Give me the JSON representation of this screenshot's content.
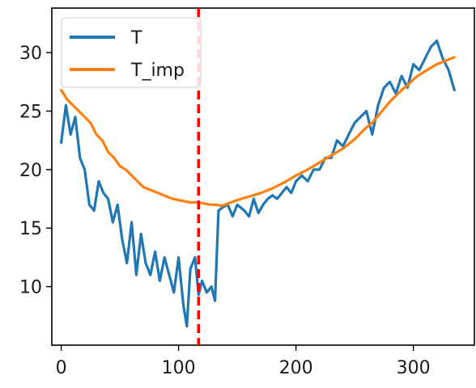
{
  "chart_data": {
    "type": "line",
    "title": "",
    "xlabel": "",
    "ylabel": "",
    "xlim": [
      -8,
      352
    ],
    "ylim": [
      5.0,
      33.8
    ],
    "x_ticks": [
      0,
      100,
      200,
      300
    ],
    "y_ticks": [
      10,
      15,
      20,
      25,
      30
    ],
    "grid": false,
    "legend_position": "top-left",
    "vline": {
      "x": 117,
      "color": "#ff0000",
      "style": "dashed"
    },
    "series": [
      {
        "name": "T",
        "color": "#1f77b4",
        "x": [
          0,
          4,
          8,
          12,
          16,
          20,
          24,
          28,
          32,
          36,
          40,
          44,
          48,
          52,
          56,
          60,
          64,
          68,
          72,
          76,
          80,
          84,
          88,
          92,
          96,
          100,
          104,
          107,
          110,
          114,
          117,
          120,
          124,
          128,
          131,
          134,
          138,
          142,
          146,
          150,
          156,
          160,
          164,
          168,
          172,
          176,
          180,
          184,
          188,
          192,
          196,
          200,
          205,
          210,
          215,
          220,
          225,
          230,
          235,
          240,
          245,
          250,
          255,
          260,
          265,
          270,
          275,
          280,
          285,
          290,
          295,
          300,
          305,
          310,
          315,
          320,
          325,
          330,
          335
        ],
        "values": [
          22.3,
          25.5,
          23.0,
          24.5,
          21.0,
          20.0,
          17.0,
          16.5,
          19.0,
          18.0,
          17.5,
          15.5,
          17.0,
          14.0,
          12.0,
          15.5,
          11.0,
          14.5,
          12.0,
          11.0,
          13.0,
          10.5,
          12.5,
          11.0,
          9.5,
          12.5,
          8.5,
          6.6,
          11.5,
          12.5,
          9.3,
          10.5,
          9.5,
          10.0,
          8.8,
          16.5,
          16.8,
          17.0,
          16.0,
          17.0,
          16.5,
          16.0,
          17.5,
          16.3,
          17.0,
          17.5,
          17.8,
          17.5,
          18.0,
          18.5,
          18.0,
          19.0,
          19.5,
          19.0,
          20.0,
          20.0,
          21.0,
          21.0,
          22.5,
          22.0,
          23.0,
          24.0,
          24.5,
          25.0,
          23.0,
          25.5,
          27.0,
          27.5,
          26.5,
          28.0,
          27.0,
          29.0,
          28.5,
          29.5,
          30.5,
          31.0,
          29.5,
          28.5,
          26.8
        ]
      },
      {
        "name": "T_imp",
        "color": "#ff7f0e",
        "x": [
          0,
          5,
          10,
          15,
          20,
          25,
          30,
          35,
          40,
          45,
          50,
          55,
          60,
          65,
          70,
          75,
          80,
          85,
          90,
          95,
          100,
          105,
          110,
          117,
          122,
          127,
          132,
          137,
          142,
          150,
          160,
          170,
          180,
          190,
          200,
          210,
          220,
          230,
          240,
          250,
          255,
          260,
          265,
          270,
          275,
          280,
          285,
          290,
          295,
          300,
          305,
          310,
          315,
          320,
          325,
          330,
          335
        ],
        "values": [
          26.8,
          26.0,
          25.5,
          25.0,
          24.5,
          24.0,
          23.0,
          22.5,
          21.5,
          21.0,
          20.3,
          20.0,
          19.5,
          19.0,
          18.5,
          18.3,
          18.1,
          17.9,
          17.7,
          17.5,
          17.4,
          17.3,
          17.2,
          17.2,
          17.1,
          17.0,
          17.0,
          16.9,
          17.1,
          17.4,
          17.7,
          18.0,
          18.4,
          18.9,
          19.5,
          20.0,
          20.6,
          21.2,
          21.8,
          22.6,
          23.1,
          23.6,
          24.0,
          24.6,
          25.2,
          25.8,
          26.3,
          26.8,
          27.2,
          27.7,
          28.1,
          28.4,
          28.7,
          29.0,
          29.2,
          29.4,
          29.6
        ]
      }
    ]
  }
}
